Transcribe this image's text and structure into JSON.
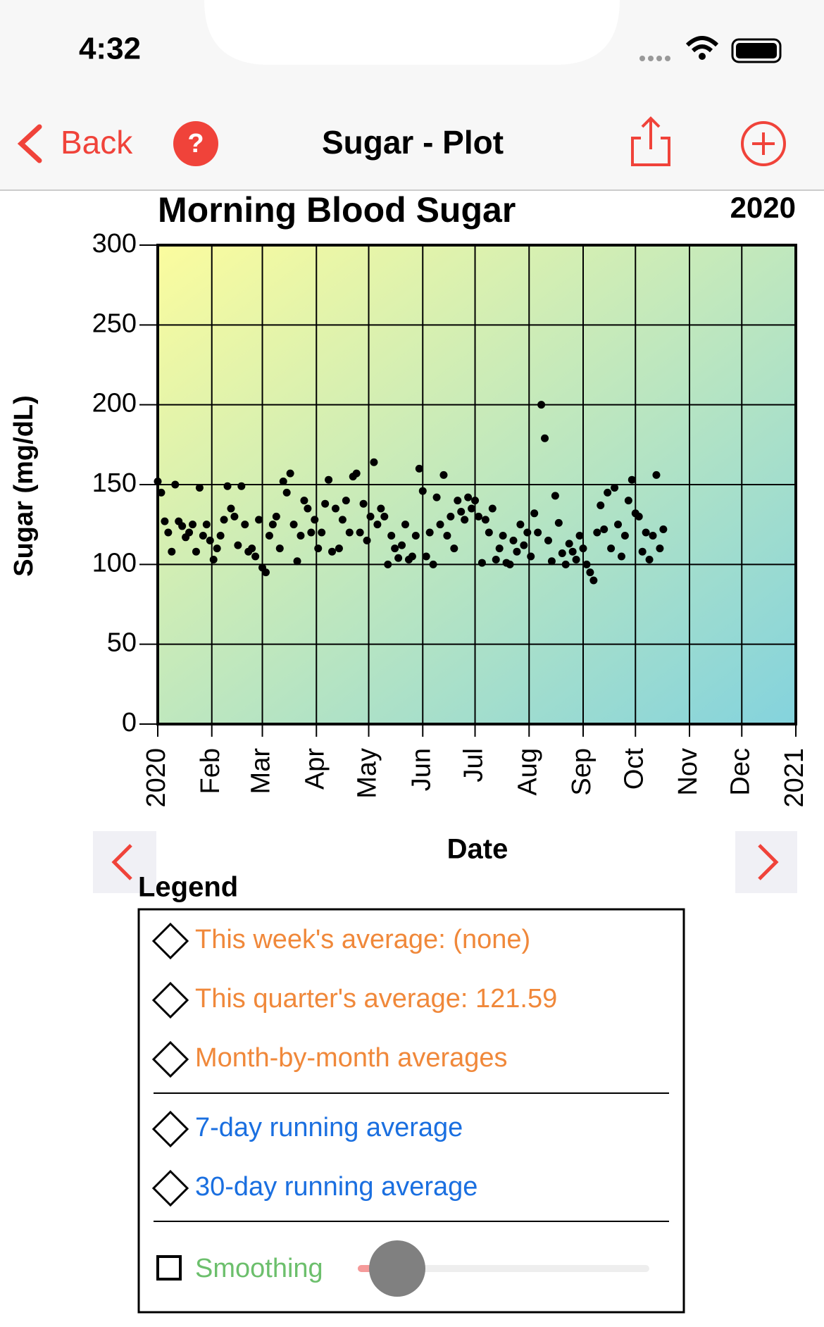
{
  "status_bar": {
    "time": "4:32"
  },
  "nav_bar": {
    "back": "Back",
    "help": "?",
    "title": "Sugar - Plot"
  },
  "chart_data": {
    "type": "scatter",
    "title": "Morning Blood Sugar",
    "year": "2020",
    "x_label": "Date",
    "y_label": "Sugar (mg/dL)",
    "color": "#000000",
    "grid": true,
    "xlim": [
      0,
      366
    ],
    "xticks": [
      {
        "value": 0,
        "label": "2020"
      },
      {
        "value": 31,
        "label": "Feb"
      },
      {
        "value": 60,
        "label": "Mar"
      },
      {
        "value": 91,
        "label": "Apr"
      },
      {
        "value": 121,
        "label": "May"
      },
      {
        "value": 152,
        "label": "Jun"
      },
      {
        "value": 182,
        "label": "Jul"
      },
      {
        "value": 213,
        "label": "Aug"
      },
      {
        "value": 244,
        "label": "Sep"
      },
      {
        "value": 274,
        "label": "Oct"
      },
      {
        "value": 305,
        "label": "Nov"
      },
      {
        "value": 335,
        "label": "Dec"
      },
      {
        "value": 366,
        "label": "2021"
      }
    ],
    "ylim": [
      0,
      300
    ],
    "yticks": [
      0,
      50,
      100,
      150,
      200,
      250,
      300
    ],
    "x": [
      0,
      2,
      4,
      6,
      8,
      10,
      12,
      14,
      16,
      18,
      20,
      22,
      24,
      26,
      28,
      30,
      32,
      34,
      36,
      38,
      40,
      42,
      44,
      46,
      48,
      50,
      52,
      54,
      56,
      58,
      60,
      62,
      64,
      66,
      68,
      70,
      72,
      74,
      76,
      78,
      80,
      82,
      84,
      86,
      88,
      90,
      92,
      94,
      96,
      98,
      100,
      102,
      104,
      106,
      108,
      110,
      112,
      114,
      116,
      118,
      120,
      122,
      124,
      126,
      128,
      130,
      132,
      134,
      136,
      138,
      140,
      142,
      144,
      146,
      148,
      150,
      152,
      154,
      156,
      158,
      160,
      162,
      164,
      166,
      168,
      170,
      172,
      174,
      176,
      178,
      180,
      182,
      184,
      186,
      188,
      190,
      192,
      194,
      196,
      198,
      200,
      202,
      204,
      206,
      208,
      210,
      212,
      214,
      216,
      218,
      220,
      222,
      224,
      226,
      228,
      230,
      232,
      234,
      236,
      238,
      240,
      242,
      244,
      246,
      248,
      250,
      252,
      254,
      256,
      258,
      260,
      262,
      264,
      266,
      268,
      270,
      272,
      274,
      276,
      278,
      280,
      282,
      284,
      286,
      288,
      290
    ],
    "values": [
      152,
      145,
      127,
      120,
      108,
      150,
      127,
      124,
      117,
      120,
      125,
      108,
      148,
      118,
      125,
      115,
      103,
      110,
      118,
      128,
      149,
      135,
      130,
      112,
      149,
      125,
      108,
      110,
      105,
      128,
      98,
      95,
      118,
      125,
      130,
      110,
      152,
      145,
      157,
      125,
      102,
      118,
      140,
      135,
      120,
      128,
      110,
      120,
      138,
      153,
      108,
      135,
      110,
      128,
      140,
      120,
      155,
      157,
      120,
      138,
      115,
      130,
      164,
      125,
      135,
      130,
      100,
      118,
      110,
      104,
      112,
      125,
      103,
      105,
      118,
      160,
      146,
      105,
      120,
      100,
      142,
      125,
      156,
      118,
      130,
      110,
      140,
      133,
      128,
      142,
      135,
      140,
      130,
      101,
      128,
      120,
      135,
      103,
      110,
      118,
      101,
      100,
      115,
      108,
      125,
      112,
      120,
      105,
      132,
      120,
      200,
      179,
      115,
      102,
      143,
      126,
      107,
      100,
      113,
      108,
      103,
      118,
      110,
      100,
      95,
      90,
      120,
      137,
      122,
      145,
      110,
      148,
      125,
      105,
      118,
      140,
      153,
      132,
      130,
      108,
      120,
      103,
      118,
      156,
      110,
      122
    ]
  },
  "legend": {
    "title": "Legend",
    "items": [
      "This week's average: (none)",
      "This quarter's average: 121.59",
      "Month-by-month averages",
      "7-day running average",
      "30-day running average"
    ],
    "smoothing": "Smoothing"
  }
}
